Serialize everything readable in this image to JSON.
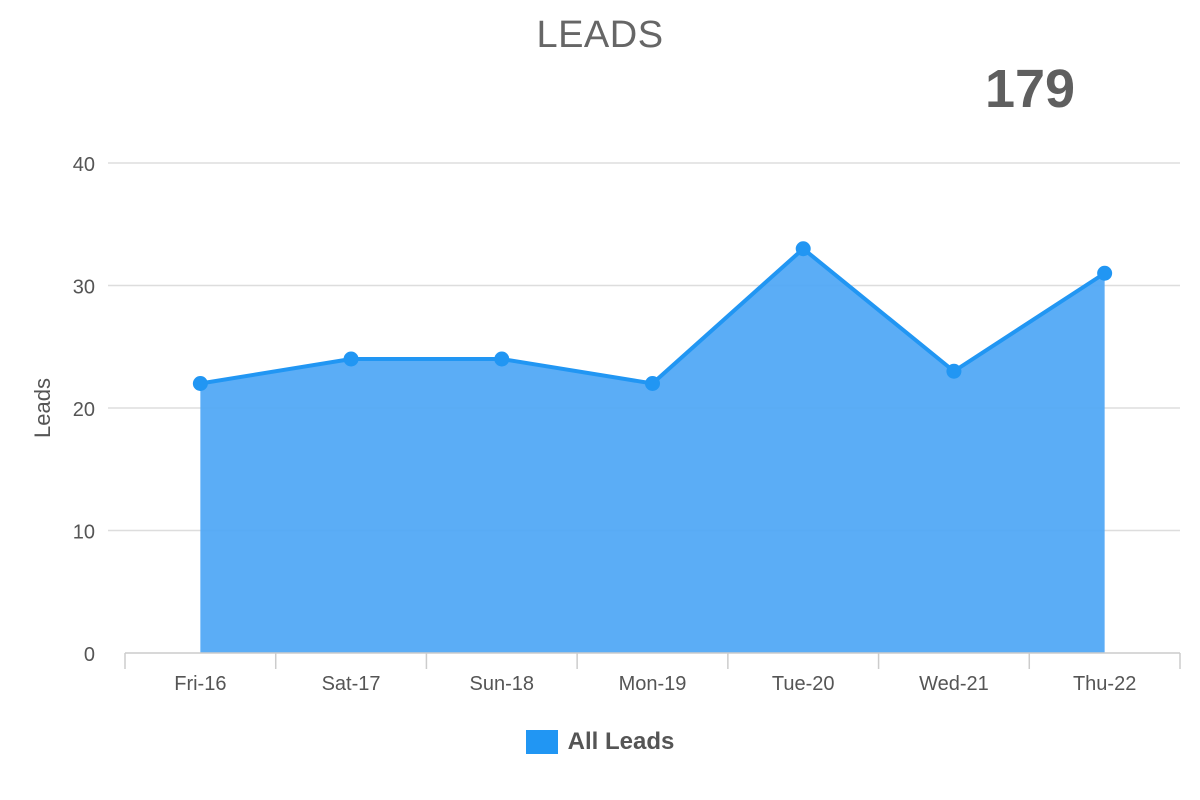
{
  "header": {
    "title": "LEADS",
    "total": "179"
  },
  "colors": {
    "series_line": "#2196F3",
    "series_fill": "#4DA6F5",
    "marker": "#2196F3",
    "grid": "#dddddd",
    "axis_text": "#555555"
  },
  "chart_data": {
    "type": "area",
    "title": "LEADS",
    "xlabel": "",
    "ylabel": "Leads",
    "categories": [
      "Fri-16",
      "Sat-17",
      "Sun-18",
      "Mon-19",
      "Tue-20",
      "Wed-21",
      "Thu-22"
    ],
    "series": [
      {
        "name": "All Leads",
        "values": [
          22,
          24,
          24,
          22,
          33,
          23,
          31
        ]
      }
    ],
    "ylim": [
      0,
      40
    ],
    "yticks": [
      0,
      10,
      20,
      30,
      40
    ],
    "grid": true,
    "legend": "bottom-center"
  }
}
